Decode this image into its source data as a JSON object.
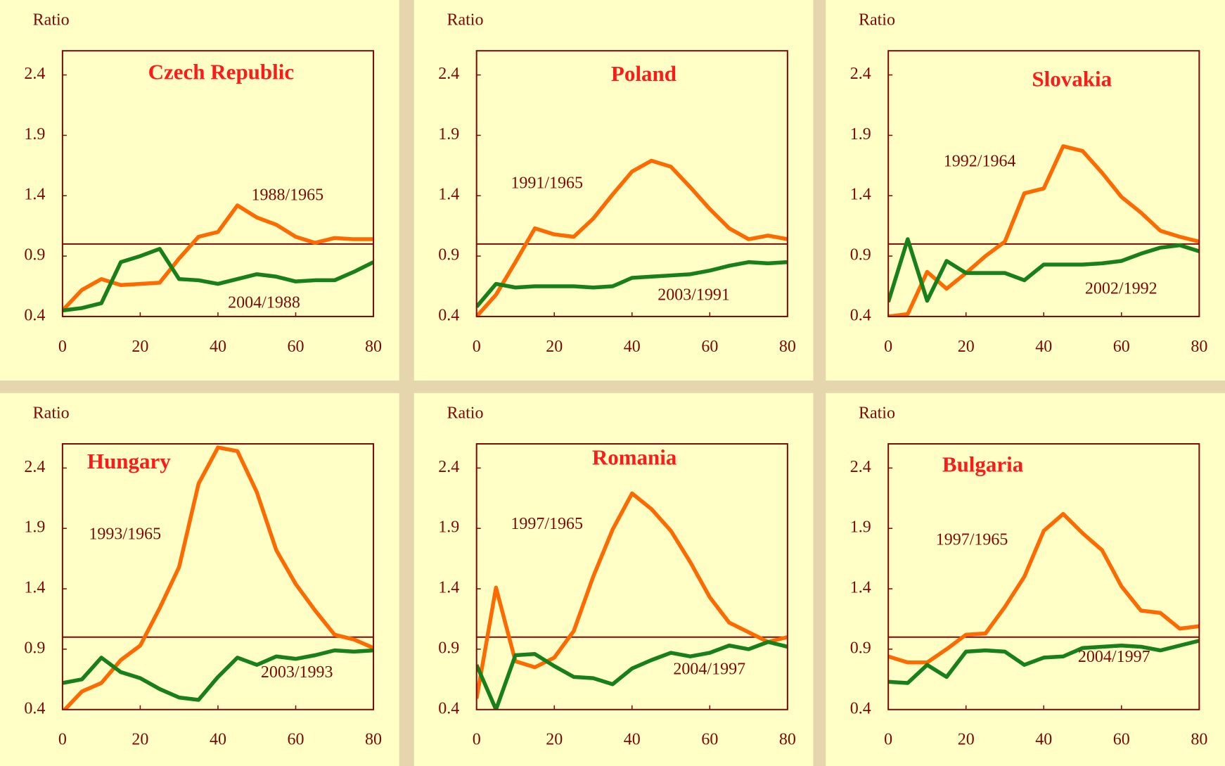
{
  "chart_data": [
    {
      "type": "line",
      "title": "Czech Republic",
      "y_label": "Ratio",
      "xlim": [
        0,
        80
      ],
      "ylim": [
        0.4,
        2.6
      ],
      "xticks": [
        0,
        20,
        40,
        60,
        80
      ],
      "yticks": [
        0.4,
        0.9,
        1.4,
        1.9,
        2.4
      ],
      "reference_line": 1,
      "x": [
        0,
        5,
        10,
        15,
        20,
        25,
        30,
        35,
        40,
        45,
        50,
        55,
        60,
        65,
        70,
        75,
        80
      ],
      "series": [
        {
          "name": "1988/1965",
          "color": "#ff6a00",
          "values": [
            0.45,
            0.62,
            0.71,
            0.66,
            0.67,
            0.68,
            0.88,
            1.06,
            1.1,
            1.32,
            1.22,
            1.16,
            1.06,
            1.01,
            1.05,
            1.04,
            1.04
          ]
        },
        {
          "name": "2004/1988",
          "color": "#17801a",
          "values": [
            0.45,
            0.47,
            0.51,
            0.85,
            0.9,
            0.96,
            0.71,
            0.7,
            0.67,
            0.71,
            0.75,
            0.73,
            0.69,
            0.7,
            0.7,
            0.77,
            0.85
          ]
        }
      ]
    },
    {
      "type": "line",
      "title": "Poland",
      "y_label": "Ratio",
      "xlim": [
        0,
        80
      ],
      "ylim": [
        0.4,
        2.6
      ],
      "xticks": [
        0,
        20,
        40,
        60,
        80
      ],
      "yticks": [
        0.4,
        0.9,
        1.4,
        1.9,
        2.4
      ],
      "reference_line": 1,
      "x": [
        0,
        5,
        10,
        15,
        20,
        25,
        30,
        35,
        40,
        45,
        50,
        55,
        60,
        65,
        70,
        75,
        80
      ],
      "series": [
        {
          "name": "1991/1965",
          "color": "#ff6a00",
          "values": [
            0.4,
            0.58,
            0.85,
            1.13,
            1.08,
            1.06,
            1.21,
            1.41,
            1.6,
            1.69,
            1.64,
            1.47,
            1.29,
            1.13,
            1.04,
            1.07,
            1.04
          ]
        },
        {
          "name": "2003/1991",
          "color": "#17801a",
          "values": [
            0.48,
            0.67,
            0.64,
            0.65,
            0.65,
            0.65,
            0.64,
            0.65,
            0.72,
            0.73,
            0.74,
            0.75,
            0.78,
            0.82,
            0.85,
            0.84,
            0.85
          ]
        }
      ]
    },
    {
      "type": "line",
      "title": "Slovakia",
      "y_label": "Ratio",
      "xlim": [
        0,
        80
      ],
      "ylim": [
        0.4,
        2.6
      ],
      "xticks": [
        0,
        20,
        40,
        60,
        80
      ],
      "yticks": [
        0.4,
        0.9,
        1.4,
        1.9,
        2.4
      ],
      "reference_line": 1,
      "x": [
        0,
        5,
        10,
        15,
        20,
        25,
        30,
        35,
        40,
        45,
        50,
        55,
        60,
        65,
        70,
        75,
        80
      ],
      "series": [
        {
          "name": "1992/1964",
          "color": "#ff6a00",
          "values": [
            0.4,
            0.42,
            0.77,
            0.63,
            0.76,
            0.9,
            1.02,
            1.42,
            1.46,
            1.81,
            1.77,
            1.59,
            1.39,
            1.26,
            1.11,
            1.06,
            1.02
          ]
        },
        {
          "name": "2002/1992",
          "color": "#17801a",
          "values": [
            0.52,
            1.04,
            0.53,
            0.86,
            0.76,
            0.76,
            0.76,
            0.7,
            0.83,
            0.83,
            0.83,
            0.84,
            0.86,
            0.92,
            0.97,
            0.99,
            0.94
          ]
        }
      ]
    },
    {
      "type": "line",
      "title": "Hungary",
      "y_label": "Ratio",
      "xlim": [
        0,
        80
      ],
      "ylim": [
        0.4,
        2.6
      ],
      "xticks": [
        0,
        20,
        40,
        60,
        80
      ],
      "yticks": [
        0.4,
        0.9,
        1.4,
        1.9,
        2.4
      ],
      "reference_line": 1,
      "x": [
        0,
        5,
        10,
        15,
        20,
        25,
        30,
        35,
        40,
        45,
        50,
        55,
        60,
        65,
        70,
        75,
        80
      ],
      "series": [
        {
          "name": "1993/1965",
          "color": "#ff6a00",
          "values": [
            0.38,
            0.55,
            0.62,
            0.81,
            0.93,
            1.24,
            1.58,
            2.27,
            2.57,
            2.54,
            2.2,
            1.72,
            1.44,
            1.22,
            1.02,
            0.98,
            0.91
          ]
        },
        {
          "name": "2003/1993",
          "color": "#17801a",
          "values": [
            0.62,
            0.65,
            0.83,
            0.71,
            0.66,
            0.57,
            0.5,
            0.48,
            0.67,
            0.83,
            0.77,
            0.84,
            0.82,
            0.85,
            0.89,
            0.88,
            0.89
          ]
        }
      ]
    },
    {
      "type": "line",
      "title": "Romania",
      "y_label": "Ratio",
      "xlim": [
        0,
        80
      ],
      "ylim": [
        0.4,
        2.6
      ],
      "xticks": [
        0,
        20,
        40,
        60,
        80
      ],
      "yticks": [
        0.4,
        0.9,
        1.4,
        1.9,
        2.4
      ],
      "reference_line": 1,
      "x": [
        0,
        5,
        10,
        15,
        20,
        25,
        30,
        35,
        40,
        45,
        50,
        55,
        60,
        65,
        70,
        75,
        80
      ],
      "series": [
        {
          "name": "1997/1965",
          "color": "#ff6a00",
          "values": [
            0.49,
            1.41,
            0.8,
            0.75,
            0.83,
            1.05,
            1.5,
            1.89,
            2.19,
            2.06,
            1.88,
            1.62,
            1.33,
            1.12,
            1.04,
            0.96,
            1.0
          ]
        },
        {
          "name": "2004/1997",
          "color": "#17801a",
          "values": [
            0.77,
            0.4,
            0.85,
            0.86,
            0.76,
            0.67,
            0.66,
            0.61,
            0.74,
            0.81,
            0.87,
            0.84,
            0.87,
            0.93,
            0.9,
            0.96,
            0.92
          ]
        }
      ]
    },
    {
      "type": "line",
      "title": "Bulgaria",
      "y_label": "Ratio",
      "xlim": [
        0,
        80
      ],
      "ylim": [
        0.4,
        2.6
      ],
      "xticks": [
        0,
        20,
        40,
        60,
        80
      ],
      "yticks": [
        0.4,
        0.9,
        1.4,
        1.9,
        2.4
      ],
      "reference_line": 1,
      "x": [
        0,
        5,
        10,
        15,
        20,
        25,
        30,
        35,
        40,
        45,
        50,
        55,
        60,
        65,
        70,
        75,
        80
      ],
      "series": [
        {
          "name": "1997/1965",
          "color": "#ff6a00",
          "values": [
            0.84,
            0.79,
            0.79,
            0.9,
            1.02,
            1.03,
            1.25,
            1.5,
            1.88,
            2.02,
            1.86,
            1.72,
            1.42,
            1.22,
            1.2,
            1.07,
            1.09
          ]
        },
        {
          "name": "2004/1997",
          "color": "#17801a",
          "values": [
            0.63,
            0.62,
            0.77,
            0.67,
            0.88,
            0.89,
            0.88,
            0.77,
            0.83,
            0.84,
            0.91,
            0.92,
            0.93,
            0.92,
            0.89,
            0.93,
            0.97
          ]
        }
      ]
    }
  ]
}
